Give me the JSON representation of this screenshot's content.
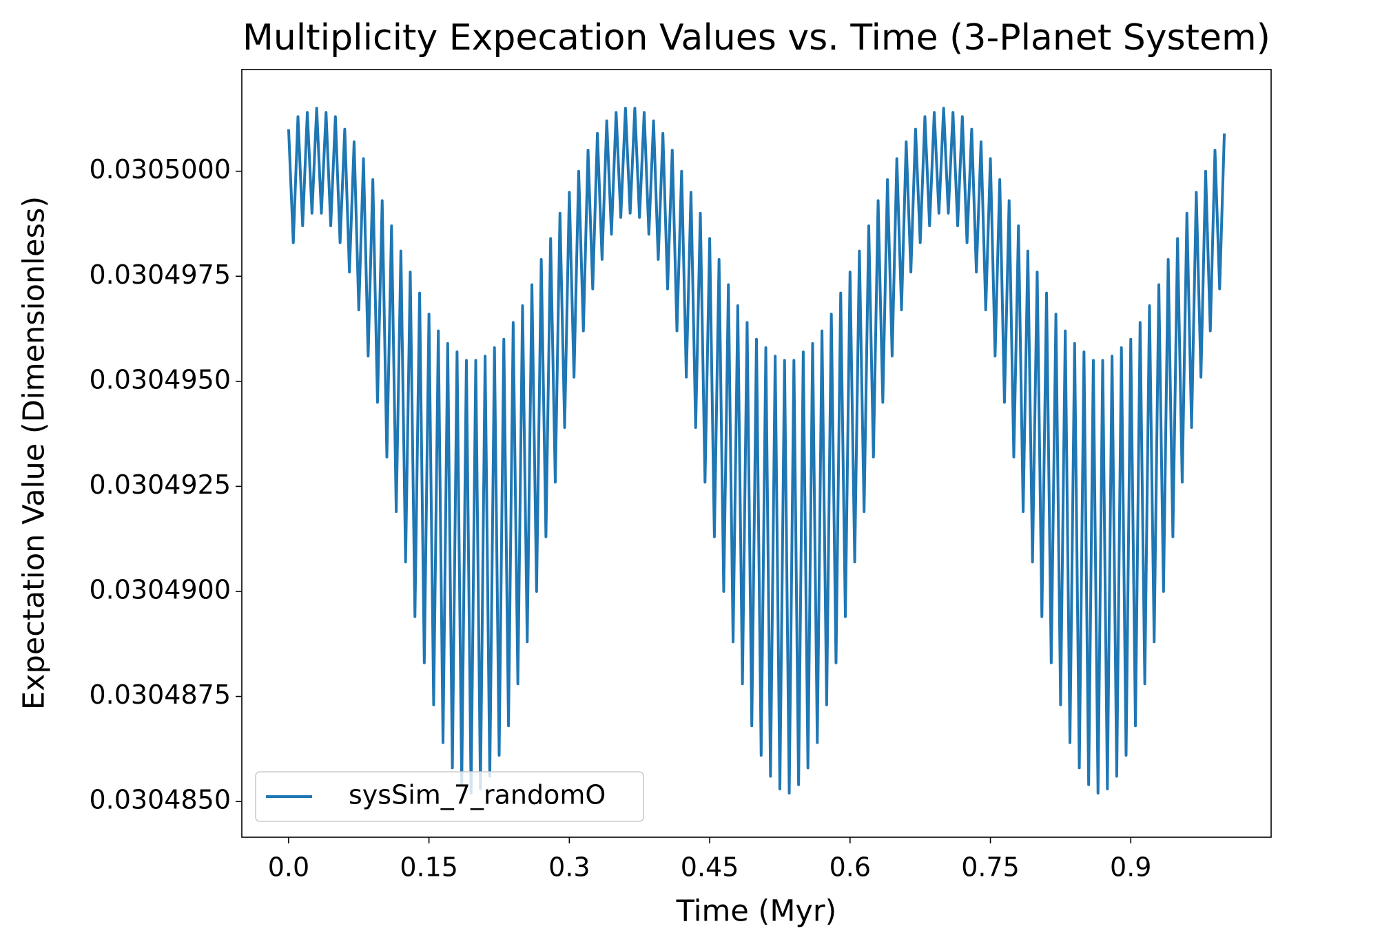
{
  "chart_data": {
    "type": "line",
    "title": "Multiplicity Expecation Values vs. Time (3-Planet System)",
    "xlabel": "Time (Myr)",
    "ylabel": "Expectation Value (Dimensionless)",
    "x": [
      0,
      0.005,
      0.01,
      0.015,
      0.02,
      0.025,
      0.03,
      0.035,
      0.04,
      0.045,
      0.05,
      0.055,
      0.06,
      0.065,
      0.07,
      0.075,
      0.08,
      0.085,
      0.09,
      0.095,
      0.1,
      0.105,
      0.11,
      0.115,
      0.12,
      0.125,
      0.13,
      0.135,
      0.14,
      0.145,
      0.15,
      0.155,
      0.16,
      0.165,
      0.17,
      0.175,
      0.18,
      0.185,
      0.19,
      0.195,
      0.2,
      0.205,
      0.21,
      0.215,
      0.22,
      0.225,
      0.23,
      0.235,
      0.24,
      0.245,
      0.25,
      0.255,
      0.26,
      0.265,
      0.27,
      0.275,
      0.28,
      0.285,
      0.29,
      0.295,
      0.3,
      0.305,
      0.31,
      0.315,
      0.32,
      0.325,
      0.33,
      0.335,
      0.34,
      0.345,
      0.35,
      0.355,
      0.36,
      0.365,
      0.37,
      0.375,
      0.38,
      0.385,
      0.39,
      0.395,
      0.4,
      0.405,
      0.41,
      0.415,
      0.42,
      0.425,
      0.43,
      0.435,
      0.44,
      0.445,
      0.45,
      0.455,
      0.46,
      0.465,
      0.47,
      0.475,
      0.48,
      0.485,
      0.49,
      0.495,
      0.5,
      0.505,
      0.51,
      0.515,
      0.52,
      0.525,
      0.53,
      0.535,
      0.54,
      0.545,
      0.55,
      0.555,
      0.56,
      0.565,
      0.57,
      0.575,
      0.58,
      0.585,
      0.59,
      0.595,
      0.6,
      0.605,
      0.61,
      0.615,
      0.62,
      0.625,
      0.63,
      0.635,
      0.64,
      0.645,
      0.65,
      0.655,
      0.66,
      0.665,
      0.67,
      0.675,
      0.68,
      0.685,
      0.69,
      0.695,
      0.7,
      0.705,
      0.71,
      0.715,
      0.72,
      0.725,
      0.73,
      0.735,
      0.74,
      0.745,
      0.75,
      0.755,
      0.76,
      0.765,
      0.77,
      0.775,
      0.78,
      0.785,
      0.79,
      0.795,
      0.8,
      0.805,
      0.81,
      0.815,
      0.82,
      0.825,
      0.83,
      0.835,
      0.84,
      0.845,
      0.85,
      0.855,
      0.86,
      0.865,
      0.87,
      0.875,
      0.88,
      0.885,
      0.89,
      0.895,
      0.9,
      0.905,
      0.91,
      0.915,
      0.92,
      0.925,
      0.93,
      0.935,
      0.94,
      0.945,
      0.95,
      0.955,
      0.96,
      0.965,
      0.97,
      0.975,
      0.98,
      0.985,
      0.99,
      0.995,
      1.0
    ],
    "series": [
      {
        "name": "sysSim_7_randomO",
        "color": "#1f77b4",
        "values": [
          0.030501,
          0.0304983,
          0.0305013,
          0.0304987,
          0.0305014,
          0.030499,
          0.0305015,
          0.030499,
          0.0305014,
          0.0304987,
          0.0305013,
          0.0304983,
          0.030501,
          0.0304976,
          0.0305007,
          0.0304967,
          0.0305003,
          0.0304956,
          0.0304998,
          0.0304945,
          0.0304993,
          0.0304932,
          0.0304987,
          0.0304919,
          0.0304981,
          0.0304907,
          0.0304976,
          0.0304894,
          0.0304971,
          0.0304883,
          0.0304966,
          0.0304873,
          0.0304962,
          0.0304864,
          0.0304959,
          0.0304858,
          0.0304957,
          0.0304854,
          0.0304955,
          0.0304852,
          0.0304955,
          0.0304853,
          0.0304956,
          0.0304856,
          0.0304958,
          0.0304861,
          0.030496,
          0.0304868,
          0.0304964,
          0.0304878,
          0.0304968,
          0.0304888,
          0.0304973,
          0.03049,
          0.0304979,
          0.0304913,
          0.0304984,
          0.0304926,
          0.030499,
          0.0304939,
          0.0304995,
          0.0304951,
          0.0305,
          0.0304962,
          0.0305005,
          0.0304972,
          0.0305009,
          0.0304979,
          0.0305012,
          0.0304985,
          0.0305014,
          0.0304989,
          0.0305015,
          0.030499,
          0.0305015,
          0.0304989,
          0.0305014,
          0.0304985,
          0.0305012,
          0.0304979,
          0.0305009,
          0.0304972,
          0.0305005,
          0.0304962,
          0.0305,
          0.0304951,
          0.0304995,
          0.0304939,
          0.030499,
          0.0304926,
          0.0304984,
          0.0304913,
          0.0304979,
          0.03049,
          0.0304973,
          0.0304888,
          0.0304968,
          0.0304878,
          0.0304964,
          0.0304868,
          0.030496,
          0.0304861,
          0.0304958,
          0.0304856,
          0.0304956,
          0.0304853,
          0.0304955,
          0.0304852,
          0.0304955,
          0.0304854,
          0.0304957,
          0.0304858,
          0.0304959,
          0.0304864,
          0.0304962,
          0.0304873,
          0.0304966,
          0.0304883,
          0.0304971,
          0.0304894,
          0.0304976,
          0.0304907,
          0.0304981,
          0.0304919,
          0.0304987,
          0.0304932,
          0.0304993,
          0.0304945,
          0.0304998,
          0.0304956,
          0.0305003,
          0.0304967,
          0.0305007,
          0.0304976,
          0.030501,
          0.0304983,
          0.0305013,
          0.0304987,
          0.0305014,
          0.030499,
          0.0305015,
          0.030499,
          0.0305014,
          0.0304987,
          0.0305013,
          0.0304983,
          0.030501,
          0.0304976,
          0.0305007,
          0.0304967,
          0.0305003,
          0.0304956,
          0.0304998,
          0.0304945,
          0.0304993,
          0.0304932,
          0.0304987,
          0.0304919,
          0.0304981,
          0.0304907,
          0.0304976,
          0.0304894,
          0.0304971,
          0.0304883,
          0.0304966,
          0.0304873,
          0.0304962,
          0.0304864,
          0.0304959,
          0.0304858,
          0.0304957,
          0.0304854,
          0.0304955,
          0.0304852,
          0.0304955,
          0.0304853,
          0.0304956,
          0.0304856,
          0.0304958,
          0.0304861,
          0.030496,
          0.0304868,
          0.0304964,
          0.0304878,
          0.0304968,
          0.0304888,
          0.0304973,
          0.03049,
          0.0304979,
          0.0304913,
          0.0304984,
          0.0304926,
          0.030499,
          0.0304939,
          0.0304995,
          0.0304951,
          0.0305,
          0.0304962,
          0.0305005,
          0.0304972,
          0.0305009
        ]
      }
    ],
    "xlim": [
      -0.05,
      1.05
    ],
    "xticks": [
      {
        "value": 0,
        "label": "0.0"
      },
      0.15,
      0.3,
      0.45,
      0.6,
      0.75,
      0.9
    ],
    "ylim": [
      0.03048415,
      0.03050242
    ],
    "yticks": [
      {
        "value": 0.030485,
        "label": "0.0304850"
      },
      {
        "value": 0.0304875,
        "label": "0.0304875"
      },
      {
        "value": 0.03049,
        "label": "0.0304900"
      },
      {
        "value": 0.0304925,
        "label": "0.0304925"
      },
      {
        "value": 0.030495,
        "label": "0.0304950"
      },
      {
        "value": 0.0304975,
        "label": "0.0304975"
      },
      {
        "value": 0.0305,
        "label": "0.0305000"
      }
    ],
    "grid": false,
    "legend_loc": "lower left"
  }
}
